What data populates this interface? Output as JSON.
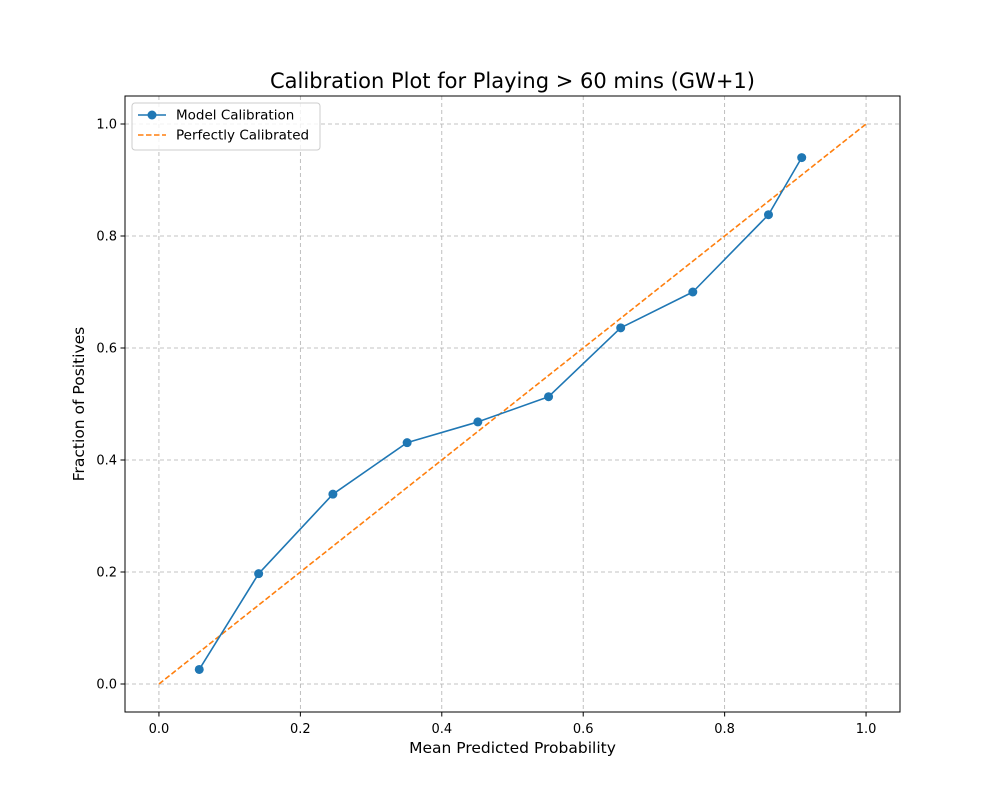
{
  "chart_data": {
    "type": "line",
    "title": "Calibration Plot for Playing > 60 mins (GW+1)",
    "xlabel": "Mean Predicted Probability",
    "ylabel": "Fraction of Positives",
    "xlim": [
      -0.048,
      1.048
    ],
    "ylim": [
      -0.05,
      1.05
    ],
    "xticks": [
      0.0,
      0.2,
      0.4,
      0.6,
      0.8,
      1.0
    ],
    "yticks": [
      0.0,
      0.2,
      0.4,
      0.6,
      0.8,
      1.0
    ],
    "xtick_labels": [
      "0.0",
      "0.2",
      "0.4",
      "0.6",
      "0.8",
      "1.0"
    ],
    "ytick_labels": [
      "0.0",
      "0.2",
      "0.4",
      "0.6",
      "0.8",
      "1.0"
    ],
    "grid": true,
    "legend_position": "top-left",
    "series": [
      {
        "name": "Model Calibration",
        "style": "solid-with-markers",
        "color": "#1f77b4",
        "x": [
          0.057,
          0.141,
          0.246,
          0.351,
          0.451,
          0.551,
          0.653,
          0.755,
          0.862,
          0.909
        ],
        "y": [
          0.026,
          0.197,
          0.339,
          0.431,
          0.468,
          0.513,
          0.636,
          0.7,
          0.838,
          0.94
        ]
      },
      {
        "name": "Perfectly Calibrated",
        "style": "dashed",
        "color": "#ff7f0e",
        "x": [
          0.0,
          1.0
        ],
        "y": [
          0.0,
          1.0
        ]
      }
    ]
  }
}
